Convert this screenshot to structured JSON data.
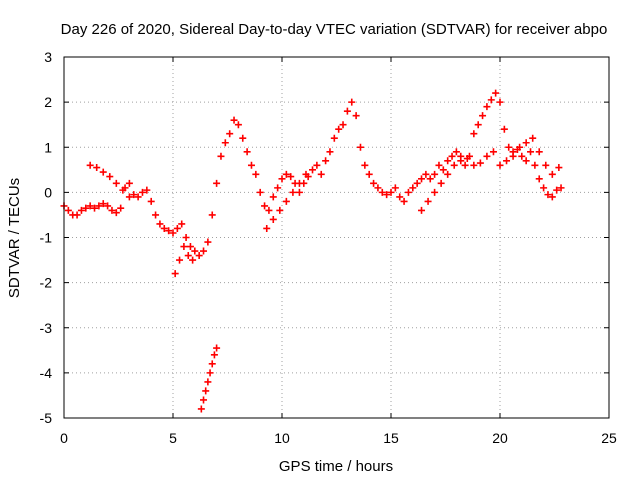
{
  "chart_data": {
    "type": "scatter",
    "title": "Day 226 of 2020, Sidereal Day-to-day VTEC variation (SDTVAR) for receiver abpo",
    "xlabel": "GPS time / hours",
    "ylabel": "SDTVAR / TECUs",
    "xlim": [
      0,
      25
    ],
    "ylim": [
      -5,
      3
    ],
    "xticks": [
      "0",
      "5",
      "10",
      "15",
      "20",
      "25"
    ],
    "yticks": [
      "-5",
      "-4",
      "-3",
      "-2",
      "-1",
      "0",
      "1",
      "2",
      "3"
    ],
    "grid": true,
    "marker": "+",
    "color": "#ff0000",
    "series": [
      {
        "name": "SDTVAR",
        "x": [
          0.0,
          0.2,
          0.4,
          0.6,
          0.8,
          1.0,
          1.2,
          1.4,
          1.6,
          1.8,
          2.0,
          2.2,
          2.4,
          2.6,
          2.8,
          3.0,
          3.2,
          3.4,
          3.6,
          3.8,
          4.0,
          4.2,
          4.4,
          4.6,
          4.8,
          5.0,
          5.2,
          5.4,
          5.6,
          5.8,
          6.0,
          6.2,
          6.4,
          6.6,
          6.8,
          7.0,
          7.2,
          7.4,
          7.6,
          7.8,
          8.0,
          8.2,
          8.4,
          8.6,
          8.8,
          9.0,
          9.2,
          9.4,
          9.6,
          9.8,
          10.0,
          10.2,
          10.4,
          10.6,
          10.8,
          11.0,
          11.2,
          11.4,
          11.6,
          11.8,
          12.0,
          12.2,
          12.4,
          12.6,
          12.8,
          13.0,
          13.2,
          13.4,
          13.6,
          13.8,
          14.0,
          14.2,
          14.4,
          14.6,
          14.8,
          15.0,
          15.2,
          15.4,
          15.6,
          15.8,
          16.0,
          16.2,
          16.4,
          16.6,
          16.8,
          17.0,
          17.2,
          17.4,
          17.6,
          17.8,
          18.0,
          18.2,
          18.4,
          18.6,
          18.8,
          19.0,
          19.2,
          19.4,
          19.6,
          19.8,
          20.0,
          20.2,
          20.4,
          20.6,
          20.8,
          21.0,
          21.2,
          21.4,
          21.6,
          21.8,
          22.0,
          22.2,
          22.4,
          22.6,
          22.8,
          1.2,
          1.5,
          1.8,
          2.1,
          2.4,
          2.7,
          3.0,
          5.1,
          5.3,
          5.5,
          5.7,
          5.9,
          6.3,
          6.4,
          6.5,
          6.6,
          6.7,
          6.8,
          6.9,
          7.0,
          9.3,
          9.6,
          9.9,
          10.2,
          10.5,
          10.8,
          11.1,
          16.4,
          16.7,
          17.0,
          17.3,
          17.6,
          17.9,
          18.2,
          18.5,
          18.8,
          19.1,
          19.4,
          19.7,
          20.0,
          20.3,
          20.6,
          20.9,
          21.2,
          21.5,
          21.8,
          22.1,
          22.4,
          22.7
        ],
        "y": [
          -0.3,
          -0.4,
          -0.5,
          -0.5,
          -0.4,
          -0.35,
          -0.3,
          -0.35,
          -0.3,
          -0.25,
          -0.3,
          -0.4,
          -0.45,
          -0.35,
          0.1,
          0.2,
          -0.05,
          -0.1,
          0.0,
          0.05,
          -0.2,
          -0.5,
          -0.7,
          -0.8,
          -0.85,
          -0.9,
          -0.8,
          -0.7,
          -1.0,
          -1.2,
          -1.3,
          -1.4,
          -1.3,
          -1.1,
          -0.5,
          0.2,
          0.8,
          1.1,
          1.3,
          1.6,
          1.5,
          1.2,
          0.9,
          0.6,
          0.4,
          0.0,
          -0.3,
          -0.4,
          -0.1,
          0.1,
          0.3,
          0.4,
          0.35,
          0.2,
          0.0,
          0.2,
          0.35,
          0.5,
          0.6,
          0.4,
          0.7,
          0.9,
          1.2,
          1.4,
          1.5,
          1.8,
          2.0,
          1.7,
          1.0,
          0.6,
          0.4,
          0.2,
          0.1,
          0.0,
          -0.05,
          0.0,
          0.1,
          -0.1,
          -0.2,
          0.0,
          0.1,
          0.2,
          0.3,
          0.4,
          0.3,
          0.4,
          0.6,
          0.5,
          0.7,
          0.8,
          0.9,
          0.7,
          0.6,
          0.8,
          1.3,
          1.5,
          1.7,
          1.9,
          2.05,
          2.2,
          2.0,
          1.4,
          1.0,
          0.9,
          0.95,
          0.8,
          0.7,
          0.9,
          0.6,
          0.3,
          0.1,
          -0.05,
          -0.1,
          0.05,
          0.1,
          0.6,
          0.55,
          0.45,
          0.35,
          0.2,
          0.05,
          -0.1,
          -1.8,
          -1.5,
          -1.2,
          -1.4,
          -1.5,
          -4.8,
          -4.6,
          -4.4,
          -4.2,
          -4.0,
          -3.8,
          -3.6,
          -3.45,
          -0.8,
          -0.6,
          -0.4,
          -0.2,
          0.0,
          0.2,
          0.4,
          -0.4,
          -0.2,
          0.0,
          0.2,
          0.4,
          0.6,
          0.8,
          0.75,
          0.6,
          0.65,
          0.8,
          0.9,
          0.6,
          0.7,
          0.8,
          1.0,
          1.1,
          1.2,
          0.9,
          0.6,
          0.4,
          0.55
        ]
      }
    ]
  }
}
